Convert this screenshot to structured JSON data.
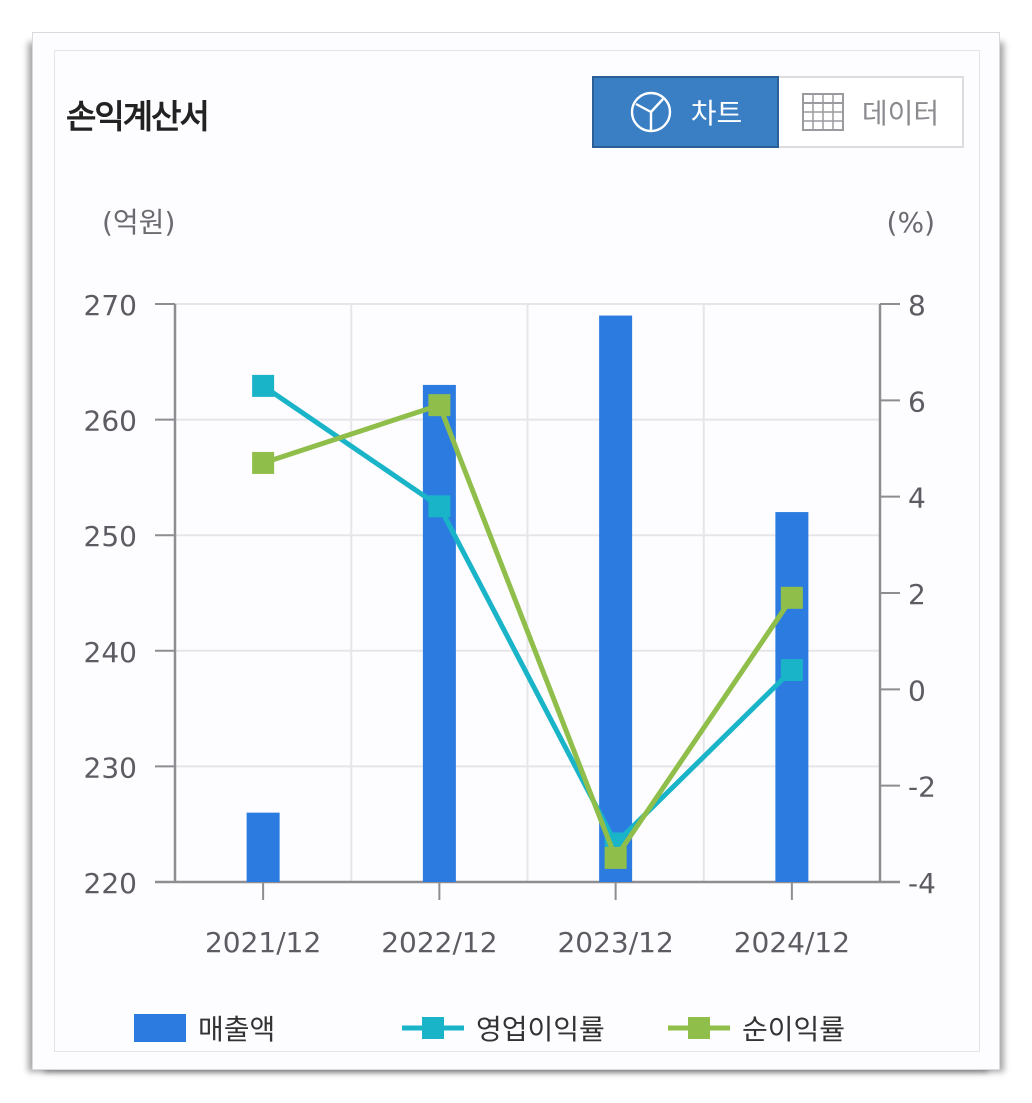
{
  "title": "손익계산서",
  "toggle": {
    "chart_label": "차트",
    "data_label": "데이터",
    "chart_icon": "pie-chart-icon",
    "data_icon": "table-grid-icon",
    "active": "chart"
  },
  "colors": {
    "revenue": "#2b7be0",
    "operating_margin": "#1ab4c9",
    "net_margin": "#8fbe4a",
    "toggle_active": "#3a7fc4"
  },
  "chart_data": {
    "type": "bar",
    "categories": [
      "2021/12",
      "2022/12",
      "2023/12",
      "2024/12"
    ],
    "y_left": {
      "unit_label": "(억원)",
      "range": [
        220,
        270
      ],
      "ticks": [
        "220",
        "230",
        "240",
        "250",
        "260",
        "270"
      ]
    },
    "y_right": {
      "unit_label": "(%)",
      "range": [
        -4,
        8
      ],
      "ticks": [
        "-4",
        "-2",
        "0",
        "2",
        "4",
        "6",
        "8"
      ]
    },
    "grid": true,
    "legend_position": "bottom",
    "series": [
      {
        "name": "매출액",
        "type": "bar",
        "axis": "left",
        "values": [
          226,
          263,
          269,
          252
        ]
      },
      {
        "name": "영업이익률",
        "type": "line",
        "axis": "right",
        "values": [
          6.3,
          3.8,
          -3.2,
          0.4
        ]
      },
      {
        "name": "순이익률",
        "type": "line",
        "axis": "right",
        "values": [
          4.7,
          5.9,
          -3.5,
          1.9
        ]
      }
    ]
  }
}
